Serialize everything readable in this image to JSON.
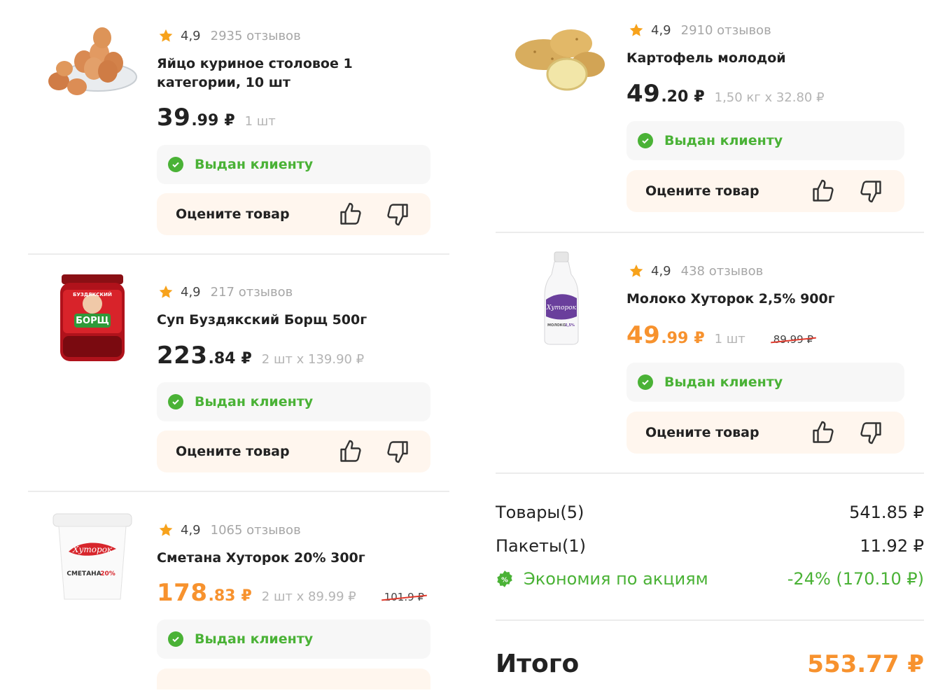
{
  "items": [
    {
      "id": "eggs",
      "rating": "4,9",
      "reviews": "2935 отзывов",
      "name": "Яйцо куриное столовое 1 категории, 10 шт",
      "price_int": "39",
      "price_frac": ".99",
      "currency": "₽",
      "qty": "1 шт",
      "old_price": "",
      "status": "Выдан клиенту",
      "rate_label": "Оцените товар",
      "image": "eggs-bowl"
    },
    {
      "id": "borsch",
      "rating": "4,9",
      "reviews": "217 отзывов",
      "name": "Суп Буздякский Борщ 500г",
      "price_int": "223",
      "price_frac": ".84",
      "currency": "₽",
      "qty": "2 шт х 139.90 ₽",
      "old_price": "",
      "status": "Выдан клиенту",
      "rate_label": "Оцените товар",
      "image": "borsch-jar",
      "image_text": {
        "brand": "БУЗДЯКСКИЙ",
        "product": "БОРЩ"
      }
    },
    {
      "id": "smetana",
      "rating": "4,9",
      "reviews": "1065 отзывов",
      "name": "Сметана Хуторок 20% 300г",
      "price_int": "178",
      "price_frac": ".83",
      "currency": "₽",
      "qty": "2 шт х 89.99 ₽",
      "old_price": "101.9 ₽",
      "status": "Выдан клиенту",
      "rate_label": "",
      "image": "smetana-cup",
      "image_text": {
        "brand": "Хуторок",
        "product": "СМЕТАНА",
        "fat": "20%"
      }
    },
    {
      "id": "potato",
      "rating": "4,9",
      "reviews": "2910 отзывов",
      "name": "Картофель молодой",
      "price_int": "49",
      "price_frac": ".20",
      "currency": "₽",
      "qty": "1,50 кг х 32.80 ₽",
      "old_price": "",
      "status": "Выдан клиенту",
      "rate_label": "Оцените товар",
      "image": "potatoes"
    },
    {
      "id": "milk",
      "rating": "4,9",
      "reviews": "438 отзывов",
      "name": "Молоко Хуторок 2,5% 900г",
      "price_int": "49",
      "price_frac": ".99",
      "currency": "₽",
      "qty": "1 шт",
      "old_price": "89.99 ₽",
      "status": "Выдан клиенту",
      "rate_label": "Оцените товар",
      "image": "milk-bottle",
      "image_text": {
        "brand": "Хуторок",
        "product": "МОЛОКО",
        "fat": "2,5%"
      }
    }
  ],
  "summary": {
    "goods_label": "Товары",
    "goods_count": "(5)",
    "goods_value": "541.85 ₽",
    "bags_label": "Пакеты",
    "bags_count": "(1)",
    "bags_value": "11.92 ₽",
    "savings_label": "Экономия по акциям",
    "savings_value": "-24% (170.10 ₽)",
    "total_label": "Итого",
    "total_value": "553.77 ₽"
  },
  "colors": {
    "accent_orange": "#f7922e",
    "success_green": "#4ab236",
    "star": "#f7a21b",
    "strike_red": "#e23b2e"
  },
  "icons": [
    "star-icon",
    "check-icon",
    "thumbs-up-icon",
    "thumbs-down-icon",
    "discount-icon"
  ]
}
